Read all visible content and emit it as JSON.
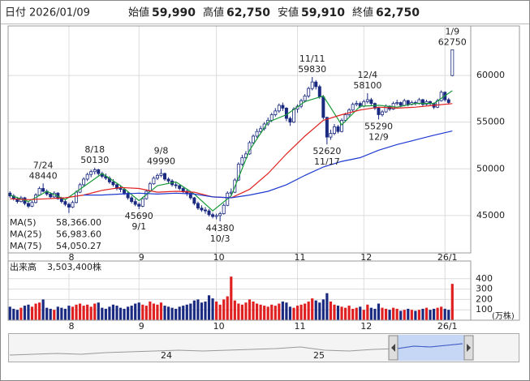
{
  "header": {
    "date_label": "日付",
    "date": "2026/01/09",
    "items": [
      {
        "label": "始値",
        "value": "59,990",
        "color": "#222222"
      },
      {
        "label": "高値",
        "value": "62,750",
        "color": "#e02020"
      },
      {
        "label": "安値",
        "value": "59,910",
        "color": "#1a9a3a"
      },
      {
        "label": "終値",
        "value": "62,750",
        "color": "#222222"
      }
    ]
  },
  "chart_data": {
    "type": "candlestick",
    "up_color": "#ffffff",
    "down_color": "#1a2a80",
    "outline_color": "#1a2a80",
    "ylim": [
      41000,
      65300
    ],
    "yticks": [
      45000,
      50000,
      55000,
      60000
    ],
    "grid": true,
    "xticks": [
      {
        "value": 16,
        "label": "8"
      },
      {
        "value": 35,
        "label": "9"
      },
      {
        "value": 56,
        "label": "10"
      },
      {
        "value": 78,
        "label": "11"
      },
      {
        "value": 96,
        "label": "12"
      },
      {
        "value": 118,
        "label": "26/1"
      }
    ],
    "candles": [
      [
        47400,
        47600,
        46900,
        47100
      ],
      [
        47100,
        47300,
        46600,
        46800
      ],
      [
        46800,
        47000,
        46300,
        46500
      ],
      [
        46500,
        47100,
        46400,
        46900
      ],
      [
        46900,
        47000,
        46100,
        46300
      ],
      [
        46300,
        46500,
        45800,
        46000
      ],
      [
        46000,
        46600,
        45900,
        46400
      ],
      [
        46400,
        47400,
        46300,
        47200
      ],
      [
        47200,
        48100,
        47100,
        47900
      ],
      [
        47900,
        48440,
        47500,
        47600
      ],
      [
        47600,
        47800,
        47100,
        47300
      ],
      [
        47300,
        47500,
        46800,
        47000
      ],
      [
        47000,
        47600,
        46900,
        47400
      ],
      [
        47400,
        47500,
        46700,
        46800
      ],
      [
        46800,
        47000,
        46300,
        46500
      ],
      [
        46500,
        46700,
        46000,
        46200
      ],
      [
        46200,
        46400,
        45280,
        45900
      ],
      [
        45900,
        46600,
        45800,
        46400
      ],
      [
        46400,
        47700,
        46300,
        47500
      ],
      [
        47500,
        48500,
        47400,
        48300
      ],
      [
        48300,
        49100,
        48100,
        48900
      ],
      [
        48900,
        49600,
        48700,
        49400
      ],
      [
        49400,
        49900,
        49100,
        49700
      ],
      [
        49700,
        50130,
        49400,
        49900
      ],
      [
        49900,
        50000,
        49300,
        49500
      ],
      [
        49500,
        49700,
        49000,
        49200
      ],
      [
        49200,
        49500,
        48800,
        49000
      ],
      [
        49000,
        49200,
        48400,
        48600
      ],
      [
        48600,
        48900,
        48100,
        48300
      ],
      [
        48300,
        48500,
        47700,
        47900
      ],
      [
        47900,
        48200,
        47500,
        47800
      ],
      [
        47800,
        47900,
        47200,
        47400
      ],
      [
        47400,
        47600,
        46700,
        46900
      ],
      [
        46900,
        47100,
        46300,
        46500
      ],
      [
        46500,
        46800,
        46000,
        46200
      ],
      [
        46200,
        46400,
        45690,
        46000
      ],
      [
        46000,
        47000,
        45900,
        46800
      ],
      [
        46800,
        47800,
        46700,
        47600
      ],
      [
        47600,
        48600,
        47500,
        48400
      ],
      [
        48400,
        49200,
        48300,
        49000
      ],
      [
        49000,
        49500,
        48800,
        49300
      ],
      [
        49300,
        49990,
        49100,
        49500
      ],
      [
        49500,
        49600,
        48700,
        48900
      ],
      [
        48900,
        49100,
        48400,
        48700
      ],
      [
        48700,
        48900,
        48100,
        48300
      ],
      [
        48300,
        48600,
        47900,
        48200
      ],
      [
        48200,
        48300,
        47700,
        47900
      ],
      [
        47900,
        48100,
        47400,
        47600
      ],
      [
        47600,
        47800,
        47100,
        47400
      ],
      [
        47400,
        47500,
        46700,
        46900
      ],
      [
        46900,
        47000,
        46100,
        46300
      ],
      [
        46300,
        46500,
        45600,
        45800
      ],
      [
        45800,
        46100,
        45400,
        45600
      ],
      [
        45600,
        45900,
        45200,
        45500
      ],
      [
        45500,
        45700,
        44900,
        45100
      ],
      [
        45100,
        45300,
        44700,
        44900
      ],
      [
        44900,
        45200,
        44600,
        45000
      ],
      [
        45000,
        45400,
        44380,
        45200
      ],
      [
        45200,
        46300,
        45100,
        46100
      ],
      [
        46100,
        47600,
        46000,
        47400
      ],
      [
        47400,
        47900,
        47100,
        47500
      ],
      [
        47500,
        49000,
        47400,
        48800
      ],
      [
        48800,
        50700,
        48700,
        50500
      ],
      [
        50500,
        51500,
        50300,
        51200
      ],
      [
        51200,
        51900,
        51000,
        51600
      ],
      [
        51600,
        53000,
        51500,
        52800
      ],
      [
        52800,
        53700,
        52600,
        53500
      ],
      [
        53500,
        54300,
        53300,
        54000
      ],
      [
        54000,
        54600,
        53800,
        54300
      ],
      [
        54300,
        55000,
        54100,
        54800
      ],
      [
        54800,
        55500,
        54600,
        55200
      ],
      [
        55200,
        56000,
        55000,
        55800
      ],
      [
        55800,
        56500,
        55600,
        56200
      ],
      [
        56200,
        57000,
        56000,
        56800
      ],
      [
        56800,
        57100,
        56200,
        56500
      ],
      [
        56500,
        56600,
        55100,
        55400
      ],
      [
        55400,
        55600,
        54600,
        55000
      ],
      [
        55000,
        56600,
        54900,
        56400
      ],
      [
        56400,
        56900,
        56000,
        56700
      ],
      [
        56700,
        57500,
        56500,
        57300
      ],
      [
        57300,
        58000,
        57100,
        57800
      ],
      [
        57800,
        58800,
        57600,
        58600
      ],
      [
        58600,
        59830,
        58400,
        59300
      ],
      [
        59300,
        59500,
        58500,
        58800
      ],
      [
        58800,
        59000,
        57500,
        57700
      ],
      [
        57700,
        57900,
        55300,
        55500
      ],
      [
        55500,
        55600,
        52620,
        53400
      ],
      [
        53400,
        54200,
        53100,
        53800
      ],
      [
        53800,
        54800,
        53600,
        54500
      ],
      [
        54500,
        54700,
        53800,
        54000
      ],
      [
        54000,
        55400,
        53900,
        55200
      ],
      [
        55200,
        56000,
        55000,
        55800
      ],
      [
        55800,
        56500,
        55600,
        56300
      ],
      [
        56300,
        57100,
        56100,
        56900
      ],
      [
        56900,
        57300,
        56700,
        57000
      ],
      [
        57000,
        57200,
        56500,
        56700
      ],
      [
        56700,
        57400,
        56600,
        57200
      ],
      [
        57200,
        58100,
        57000,
        57400
      ],
      [
        57400,
        57600,
        56800,
        57000
      ],
      [
        57000,
        57100,
        56300,
        56500
      ],
      [
        56500,
        56600,
        55290,
        55800
      ],
      [
        55800,
        56300,
        55600,
        56100
      ],
      [
        56100,
        56900,
        56000,
        56700
      ],
      [
        56700,
        56800,
        56200,
        56400
      ],
      [
        56400,
        57200,
        56300,
        57000
      ],
      [
        57000,
        57400,
        56800,
        57100
      ],
      [
        57100,
        57200,
        56600,
        56800
      ],
      [
        56800,
        57500,
        56700,
        57300
      ],
      [
        57300,
        57400,
        56700,
        56900
      ],
      [
        56900,
        57300,
        56800,
        57100
      ],
      [
        57100,
        57300,
        56800,
        57000
      ],
      [
        57000,
        57600,
        56900,
        57400
      ],
      [
        57400,
        57500,
        56700,
        56900
      ],
      [
        56900,
        57400,
        56800,
        57200
      ],
      [
        57200,
        57300,
        56800,
        57000
      ],
      [
        57000,
        57100,
        56400,
        56600
      ],
      [
        56600,
        57500,
        56500,
        57300
      ],
      [
        57300,
        58400,
        57200,
        58200
      ],
      [
        58200,
        58300,
        57200,
        57400
      ],
      [
        57400,
        57600,
        56900,
        57100
      ],
      [
        59990,
        62750,
        59910,
        62750
      ]
    ],
    "ma": [
      {
        "name": "MA(5)",
        "color": "#1a9a3a",
        "latest_label": "58,366.00",
        "x": [
          0,
          5,
          10,
          15,
          20,
          25,
          30,
          35,
          40,
          45,
          50,
          55,
          60,
          65,
          70,
          75,
          80,
          85,
          90,
          95,
          100,
          105,
          110,
          115,
          120
        ],
        "values": [
          47200,
          46500,
          47600,
          46700,
          48100,
          49500,
          48200,
          46600,
          48200,
          48600,
          47300,
          45500,
          47100,
          52000,
          55000,
          55800,
          57200,
          57800,
          54700,
          56700,
          56800,
          56600,
          57000,
          57000,
          58366
        ]
      },
      {
        "name": "MA(25)",
        "color": "#e02020",
        "latest_label": "56,983.60",
        "x": [
          0,
          5,
          10,
          15,
          20,
          25,
          30,
          35,
          40,
          45,
          50,
          55,
          60,
          65,
          70,
          75,
          80,
          85,
          90,
          95,
          100,
          105,
          110,
          115,
          120
        ],
        "values": [
          46800,
          46700,
          46800,
          46900,
          47200,
          47700,
          48000,
          47900,
          47500,
          47600,
          47500,
          47000,
          46900,
          47800,
          49500,
          51600,
          53500,
          55200,
          55800,
          56300,
          56600,
          56500,
          56600,
          56800,
          56983.6
        ]
      },
      {
        "name": "MA(75)",
        "color": "#1e3ad0",
        "latest_label": "54,050.27",
        "x": [
          20,
          25,
          30,
          35,
          40,
          45,
          50,
          55,
          60,
          65,
          70,
          75,
          80,
          85,
          90,
          95,
          100,
          105,
          110,
          115,
          120
        ],
        "values": [
          47200,
          47200,
          47300,
          47400,
          47300,
          47400,
          47300,
          47000,
          46900,
          47200,
          47600,
          48300,
          49300,
          50200,
          50800,
          51200,
          52000,
          52600,
          53100,
          53600,
          54050.27
        ]
      }
    ],
    "annotations": [
      {
        "date": "7/24",
        "value": 48440,
        "kind": "high"
      },
      {
        "date": "8/18",
        "value": 50130,
        "kind": "high"
      },
      {
        "date": "9/1",
        "value": 45690,
        "kind": "low"
      },
      {
        "date": "9/8",
        "value": 49990,
        "kind": "high"
      },
      {
        "date": "10/3",
        "value": 44380,
        "kind": "low"
      },
      {
        "date": "11/11",
        "value": 59830,
        "kind": "high"
      },
      {
        "date": "11/17",
        "value": 52620,
        "kind": "low"
      },
      {
        "date": "12/4",
        "value": 58100,
        "kind": "high"
      },
      {
        "date": "12/9",
        "value": 55290,
        "kind": "low"
      },
      {
        "date": "1/9",
        "value": 62750,
        "kind": "high"
      }
    ],
    "volume": {
      "title": "出来高",
      "total_label": "3,503,400株",
      "unit": "(万株)",
      "up_color": "#e02020",
      "down_color": "#1a2a80",
      "ylim": [
        0,
        570
      ],
      "yticks": [
        100,
        200,
        300,
        400
      ],
      "values": [
        130,
        110,
        100,
        120,
        140,
        150,
        130,
        160,
        170,
        200,
        120,
        110,
        100,
        130,
        120,
        110,
        140,
        130,
        150,
        160,
        140,
        150,
        130,
        160,
        170,
        120,
        110,
        130,
        150,
        140,
        120,
        110,
        130,
        140,
        160,
        170,
        150,
        140,
        180,
        160,
        150,
        170,
        140,
        130,
        120,
        110,
        130,
        140,
        150,
        160,
        190,
        200,
        170,
        180,
        240,
        210,
        180,
        150,
        200,
        230,
        420,
        190,
        160,
        150,
        170,
        200,
        180,
        160,
        150,
        140,
        130,
        150,
        140,
        160,
        180,
        170,
        130,
        120,
        140,
        150,
        160,
        180,
        210,
        190,
        170,
        200,
        260,
        180,
        150,
        140,
        130,
        120,
        140,
        110,
        120,
        130,
        100,
        150,
        120,
        110,
        160,
        120,
        110,
        100,
        120,
        110,
        90,
        100,
        110,
        100,
        90,
        100,
        110,
        120,
        100,
        110,
        120,
        130,
        110,
        100,
        350
      ]
    }
  },
  "navigator": {
    "labels": [
      "24",
      "25"
    ]
  }
}
